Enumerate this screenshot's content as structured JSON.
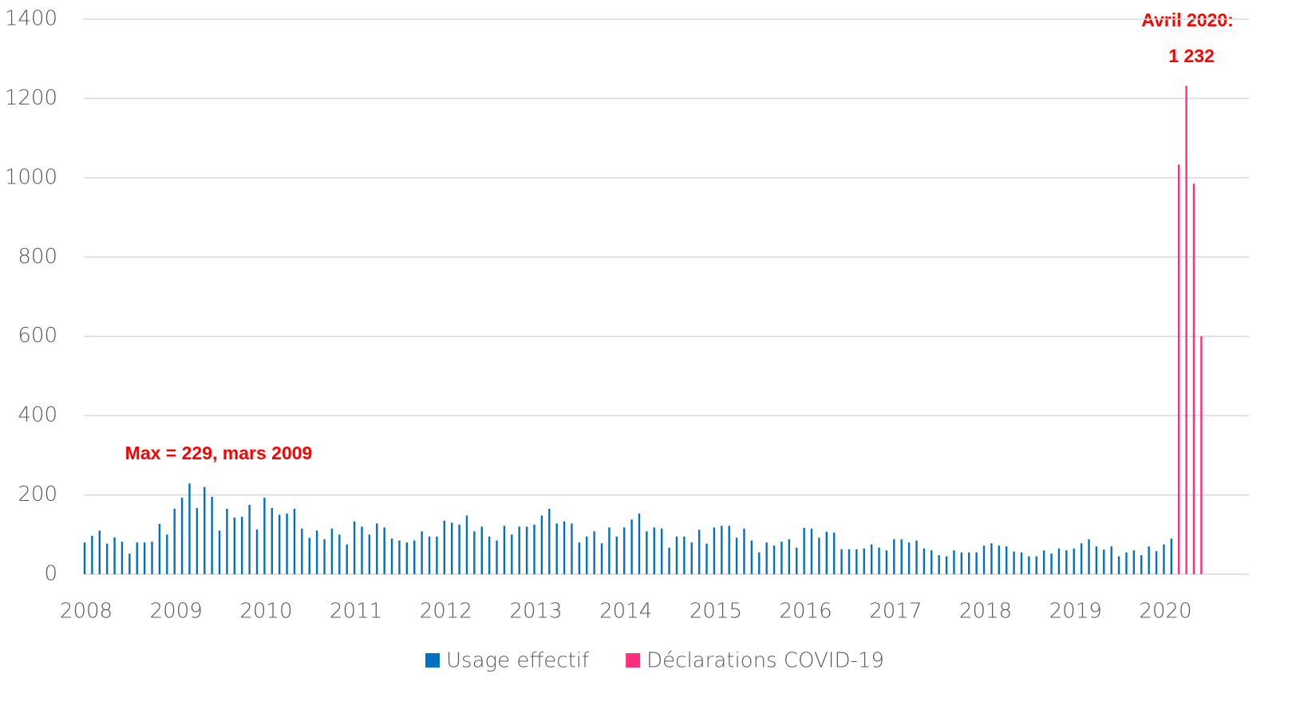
{
  "chart_data": {
    "type": "bar",
    "categories": [
      "2008",
      null,
      null,
      null,
      null,
      null,
      null,
      null,
      null,
      null,
      null,
      null,
      "2009",
      null,
      null,
      null,
      null,
      null,
      null,
      null,
      null,
      null,
      null,
      null,
      "2010",
      null,
      null,
      null,
      null,
      null,
      null,
      null,
      null,
      null,
      null,
      null,
      "2011",
      null,
      null,
      null,
      null,
      null,
      null,
      null,
      null,
      null,
      null,
      null,
      "2012",
      null,
      null,
      null,
      null,
      null,
      null,
      null,
      null,
      null,
      null,
      null,
      "2013",
      null,
      null,
      null,
      null,
      null,
      null,
      null,
      null,
      null,
      null,
      null,
      "2014",
      null,
      null,
      null,
      null,
      null,
      null,
      null,
      null,
      null,
      null,
      null,
      "2015",
      null,
      null,
      null,
      null,
      null,
      null,
      null,
      null,
      null,
      null,
      null,
      "2016",
      null,
      null,
      null,
      null,
      null,
      null,
      null,
      null,
      null,
      null,
      null,
      "2017",
      null,
      null,
      null,
      null,
      null,
      null,
      null,
      null,
      null,
      null,
      null,
      "2018",
      null,
      null,
      null,
      null,
      null,
      null,
      null,
      null,
      null,
      null,
      null,
      "2019",
      null,
      null,
      null,
      null,
      null,
      null,
      null,
      null,
      null,
      null,
      null,
      "2020",
      null,
      null,
      null,
      null,
      null
    ],
    "series": [
      {
        "name": "Usage effectif",
        "color": "#0070c0",
        "values": [
          80,
          97,
          110,
          77,
          93,
          82,
          52,
          80,
          80,
          82,
          127,
          100,
          165,
          193,
          229,
          167,
          220,
          195,
          110,
          165,
          143,
          145,
          175,
          113,
          193,
          167,
          150,
          153,
          165,
          115,
          92,
          110,
          88,
          115,
          100,
          75,
          133,
          120,
          100,
          128,
          118,
          90,
          85,
          80,
          85,
          108,
          95,
          95,
          135,
          130,
          125,
          148,
          108,
          120,
          95,
          85,
          122,
          100,
          120,
          120,
          125,
          148,
          165,
          128,
          133,
          128,
          80,
          95,
          108,
          78,
          118,
          95,
          118,
          138,
          153,
          108,
          118,
          115,
          67,
          95,
          95,
          80,
          112,
          77,
          118,
          122,
          122,
          92,
          115,
          85,
          55,
          80,
          72,
          82,
          88,
          67,
          117,
          115,
          92,
          107,
          105,
          63,
          63,
          63,
          65,
          75,
          67,
          60,
          88,
          88,
          80,
          85,
          65,
          60,
          48,
          45,
          60,
          55,
          55,
          55,
          72,
          78,
          72,
          70,
          57,
          55,
          45,
          45,
          60,
          52,
          65,
          60,
          65,
          78,
          88,
          70,
          62,
          70,
          45,
          55,
          60,
          48,
          70,
          58,
          75,
          90,
          null,
          null,
          null,
          null
        ]
      },
      {
        "name": "Déclarations COVID-19",
        "color": "#ff2d7e",
        "values": [
          null,
          null,
          null,
          null,
          null,
          null,
          null,
          null,
          null,
          null,
          null,
          null,
          null,
          null,
          null,
          null,
          null,
          null,
          null,
          null,
          null,
          null,
          null,
          null,
          null,
          null,
          null,
          null,
          null,
          null,
          null,
          null,
          null,
          null,
          null,
          null,
          null,
          null,
          null,
          null,
          null,
          null,
          null,
          null,
          null,
          null,
          null,
          null,
          null,
          null,
          null,
          null,
          null,
          null,
          null,
          null,
          null,
          null,
          null,
          null,
          null,
          null,
          null,
          null,
          null,
          null,
          null,
          null,
          null,
          null,
          null,
          null,
          null,
          null,
          null,
          null,
          null,
          null,
          null,
          null,
          null,
          null,
          null,
          null,
          null,
          null,
          null,
          null,
          null,
          null,
          null,
          null,
          null,
          null,
          null,
          null,
          null,
          null,
          null,
          null,
          null,
          null,
          null,
          null,
          null,
          null,
          null,
          null,
          null,
          null,
          null,
          null,
          null,
          null,
          null,
          null,
          null,
          null,
          null,
          null,
          null,
          null,
          null,
          null,
          null,
          null,
          null,
          null,
          null,
          null,
          null,
          null,
          null,
          null,
          null,
          null,
          null,
          null,
          null,
          null,
          null,
          null,
          null,
          null,
          null,
          null,
          1033,
          1232,
          985,
          600
        ]
      }
    ],
    "ylim": [
      0,
      1400
    ],
    "yticks": [
      0,
      200,
      400,
      600,
      800,
      1000,
      1200,
      1400
    ],
    "grid": true,
    "annotations": [
      "Max = 229, mars 2009",
      "Avril 2020:",
      "1 232"
    ],
    "legend": "bottom"
  }
}
